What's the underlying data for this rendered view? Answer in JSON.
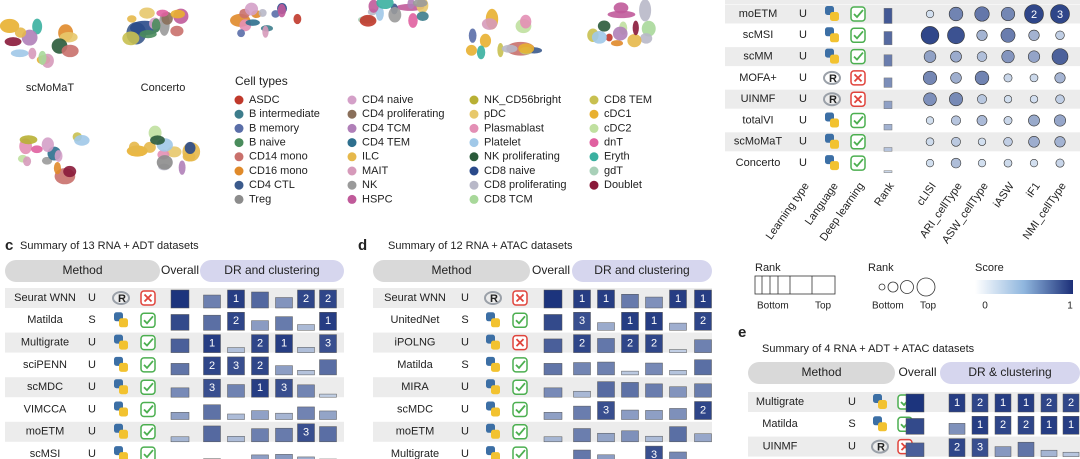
{
  "umap": {
    "labels": [
      "scMoMaT",
      "Concerto"
    ]
  },
  "cell_types": {
    "title": "Cell types",
    "items": [
      {
        "name": "ASDC",
        "color": "#c0392b"
      },
      {
        "name": "B intermediate",
        "color": "#3d7d8c"
      },
      {
        "name": "B memory",
        "color": "#5a6ea8"
      },
      {
        "name": "B naive",
        "color": "#4a8c5c"
      },
      {
        "name": "CD14 mono",
        "color": "#c9706b"
      },
      {
        "name": "CD16 mono",
        "color": "#e08a2a"
      },
      {
        "name": "CD4 CTL",
        "color": "#3b5a8c"
      },
      {
        "name": "Treg",
        "color": "#8c8c8c"
      },
      {
        "name": "CD4 naive",
        "color": "#d4a0c8"
      },
      {
        "name": "CD4 proliferating",
        "color": "#8a6f5a"
      },
      {
        "name": "CD4 TCM",
        "color": "#b07fb8"
      },
      {
        "name": "CD4 TEM",
        "color": "#2e6f8e"
      },
      {
        "name": "ILC",
        "color": "#e6b84a"
      },
      {
        "name": "MAIT",
        "color": "#d69aba"
      },
      {
        "name": "NK",
        "color": "#9a9a9a"
      },
      {
        "name": "HSPC",
        "color": "#c05a9a"
      },
      {
        "name": "NK_CD56bright",
        "color": "#b8b034"
      },
      {
        "name": "pDC",
        "color": "#e7c86b"
      },
      {
        "name": "Plasmablast",
        "color": "#e38fb5"
      },
      {
        "name": "Platelet",
        "color": "#a0c8e8"
      },
      {
        "name": "NK proliferating",
        "color": "#2a5a3a"
      },
      {
        "name": "CD8 naive",
        "color": "#2a4a8a"
      },
      {
        "name": "CD8 proliferating",
        "color": "#b8b8c8"
      },
      {
        "name": "CD8 TCM",
        "color": "#a8d89a"
      },
      {
        "name": "CD8 TEM",
        "color": "#c8c050"
      },
      {
        "name": "cDC1",
        "color": "#e8b030"
      },
      {
        "name": "cDC2",
        "color": "#c0e0a0"
      },
      {
        "name": "dnT",
        "color": "#e060a0"
      },
      {
        "name": "Eryth",
        "color": "#3ab0a0"
      },
      {
        "name": "gdT",
        "color": "#a8d0b8"
      },
      {
        "name": "Doublet",
        "color": "#8a1a3a"
      }
    ]
  },
  "panel_b": {
    "columns": [
      "Learning type",
      "Language",
      "Deep learning",
      "Rank",
      "cLISI",
      "ARI_cellType",
      "ASW_cellType",
      "iASW",
      "iF1",
      "NMI_cellType"
    ],
    "rows": [
      {
        "method": "moETM",
        "learning_type": "U",
        "language": "Python",
        "deep_learning": true,
        "scores": [
          null,
          null,
          null,
          null,
          2,
          3
        ]
      },
      {
        "method": "scMSI",
        "learning_type": "U",
        "language": "Python",
        "deep_learning": true,
        "scores": [
          null,
          null,
          null,
          null,
          null,
          null
        ]
      },
      {
        "method": "scMM",
        "learning_type": "U",
        "language": "Python",
        "deep_learning": true,
        "scores": [
          null,
          null,
          null,
          null,
          null,
          null
        ]
      },
      {
        "method": "MOFA+",
        "learning_type": "U",
        "language": "R",
        "deep_learning": false,
        "scores": [
          null,
          null,
          null,
          null,
          null,
          null
        ]
      },
      {
        "method": "UINMF",
        "learning_type": "U",
        "language": "R",
        "deep_learning": false,
        "scores": [
          null,
          null,
          null,
          null,
          null,
          null
        ]
      },
      {
        "method": "totalVI",
        "learning_type": "U",
        "language": "Python",
        "deep_learning": true,
        "scores": [
          null,
          null,
          null,
          null,
          null,
          null
        ]
      },
      {
        "method": "scMoMaT",
        "learning_type": "U",
        "language": "Python",
        "deep_learning": true,
        "scores": [
          null,
          null,
          null,
          null,
          null,
          null
        ]
      },
      {
        "method": "Concerto",
        "learning_type": "U",
        "language": "Python",
        "deep_learning": true,
        "scores": [
          null,
          null,
          null,
          null,
          null,
          null
        ]
      }
    ]
  },
  "legend": {
    "rank_bar": {
      "title": "Rank",
      "low": "Bottom",
      "high": "Top"
    },
    "rank_circle": {
      "title": "Rank",
      "low": "Bottom",
      "high": "Top"
    },
    "score": {
      "title": "Score",
      "low": 0,
      "high": 1
    }
  },
  "panel_c": {
    "letter": "c",
    "title": "Summary of 13 RNA + ADT  datasets",
    "headers": [
      "Method",
      "Overall",
      "DR and clustering"
    ],
    "rows": [
      {
        "method": "Seurat WNN",
        "learning_type": "U",
        "language": "R",
        "deep_learning": false,
        "ranks": [
          null,
          1,
          null,
          null,
          2,
          2
        ]
      },
      {
        "method": "Matilda",
        "learning_type": "S",
        "language": "Python",
        "deep_learning": true,
        "ranks": [
          null,
          2,
          null,
          null,
          null,
          1
        ]
      },
      {
        "method": "Multigrate",
        "learning_type": "U",
        "language": "Python",
        "deep_learning": true,
        "ranks": [
          1,
          null,
          2,
          1,
          null,
          3
        ]
      },
      {
        "method": "sciPENN",
        "learning_type": "U",
        "language": "Python",
        "deep_learning": true,
        "ranks": [
          2,
          3,
          2,
          null,
          null,
          null
        ]
      },
      {
        "method": "scMDC",
        "learning_type": "U",
        "language": "Python",
        "deep_learning": true,
        "ranks": [
          3,
          null,
          1,
          3,
          null,
          null
        ]
      },
      {
        "method": "VIMCCA",
        "learning_type": "U",
        "language": "Python",
        "deep_learning": true,
        "ranks": [
          null,
          null,
          null,
          null,
          null,
          null
        ]
      },
      {
        "method": "moETM",
        "learning_type": "U",
        "language": "Python",
        "deep_learning": true,
        "ranks": [
          null,
          null,
          null,
          null,
          3,
          null
        ]
      },
      {
        "method": "scMSI",
        "learning_type": "U",
        "language": "Python",
        "deep_learning": true,
        "ranks": [
          null,
          null,
          null,
          null,
          null,
          null
        ]
      }
    ]
  },
  "panel_d": {
    "letter": "d",
    "title": "Summary of 12 RNA + ATAC datasets",
    "headers": [
      "Method",
      "Overall",
      "DR and clustering"
    ],
    "rows": [
      {
        "method": "Seurat WNN",
        "learning_type": "U",
        "language": "R",
        "deep_learning": false,
        "ranks": [
          1,
          1,
          null,
          null,
          1,
          1
        ]
      },
      {
        "method": "UnitedNet",
        "learning_type": "S",
        "language": "Python",
        "deep_learning": true,
        "ranks": [
          3,
          null,
          1,
          1,
          null,
          2
        ]
      },
      {
        "method": "iPOLNG",
        "learning_type": "U",
        "language": "Python",
        "deep_learning": false,
        "ranks": [
          2,
          null,
          2,
          2,
          null,
          null
        ]
      },
      {
        "method": "Matilda",
        "learning_type": "S",
        "language": "Python",
        "deep_learning": true,
        "ranks": [
          null,
          null,
          null,
          null,
          null,
          null
        ]
      },
      {
        "method": "MIRA",
        "learning_type": "U",
        "language": "Python",
        "deep_learning": true,
        "ranks": [
          null,
          null,
          null,
          null,
          null,
          null
        ]
      },
      {
        "method": "scMDC",
        "learning_type": "U",
        "language": "Python",
        "deep_learning": true,
        "ranks": [
          null,
          3,
          null,
          null,
          null,
          2
        ]
      },
      {
        "method": "moETM",
        "learning_type": "U",
        "language": "Python",
        "deep_learning": true,
        "ranks": [
          null,
          null,
          null,
          null,
          null,
          null
        ]
      },
      {
        "method": "Multigrate",
        "learning_type": "U",
        "language": "Python",
        "deep_learning": true,
        "ranks": [
          null,
          null,
          null,
          3,
          null,
          null
        ]
      }
    ]
  },
  "panel_e": {
    "letter": "e",
    "title": "Summary of 4 RNA + ADT + ATAC datasets",
    "headers": [
      "Method",
      "Overall",
      "DR & clustering"
    ],
    "rows": [
      {
        "method": "Multigrate",
        "learning_type": "U",
        "language": "Python",
        "deep_learning": true,
        "ranks": [
          1,
          2,
          1,
          1,
          2,
          2
        ]
      },
      {
        "method": "Matilda",
        "learning_type": "S",
        "language": "Python",
        "deep_learning": true,
        "ranks": [
          null,
          1,
          2,
          2,
          1,
          1
        ]
      },
      {
        "method": "UINMF",
        "learning_type": "U",
        "language": "R",
        "deep_learning": false,
        "ranks": [
          2,
          3,
          null,
          null,
          null,
          null
        ]
      }
    ]
  }
}
